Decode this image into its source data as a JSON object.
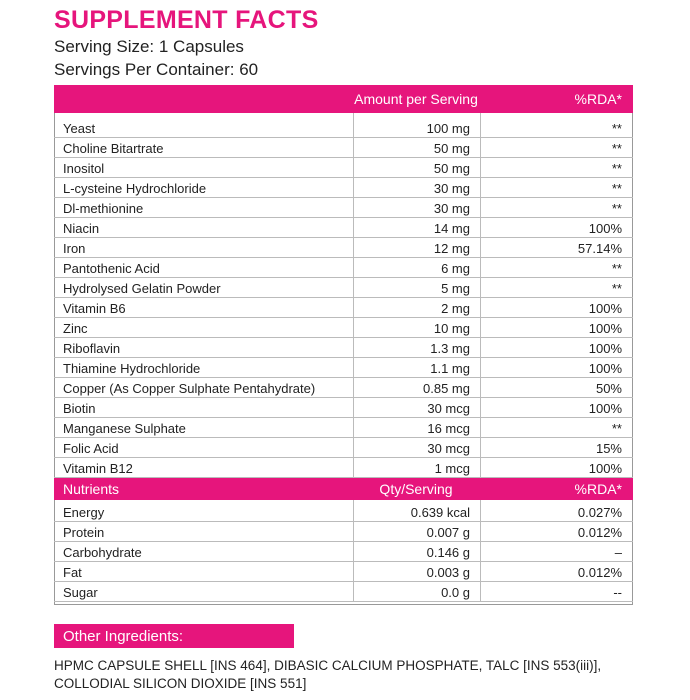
{
  "header": {
    "title": "SUPPLEMENT FACTS",
    "serving_size": "Serving Size:  1 Capsules",
    "servings_per_container": "Servings Per Container:  60"
  },
  "table": {
    "columns": [
      "Amount per Serving",
      "%RDA*"
    ],
    "rows": [
      [
        "Yeast",
        "100 mg",
        "**"
      ],
      [
        "Choline Bitartrate",
        "50 mg",
        "**"
      ],
      [
        "Inositol",
        "50 mg",
        "**"
      ],
      [
        "L-cysteine Hydrochloride",
        "30 mg",
        "**"
      ],
      [
        "Dl-methionine",
        "30 mg",
        "**"
      ],
      [
        "Niacin",
        "14 mg",
        "100%"
      ],
      [
        "Iron",
        "12 mg",
        "57.14%"
      ],
      [
        "Pantothenic Acid",
        "6 mg",
        "**"
      ],
      [
        "Hydrolysed Gelatin Powder",
        "5 mg",
        "**"
      ],
      [
        "Vitamin B6",
        "2 mg",
        "100%"
      ],
      [
        "Zinc",
        "10 mg",
        "100%"
      ],
      [
        "Riboflavin",
        "1.3 mg",
        "100%"
      ],
      [
        "Thiamine Hydrochloride",
        "1.1 mg",
        "100%"
      ],
      [
        "Copper (As Copper Sulphate Pentahydrate)",
        "0.85 mg",
        "50%"
      ],
      [
        "Biotin",
        "30 mcg",
        "100%"
      ],
      [
        "Manganese Sulphate",
        "16 mcg",
        "**"
      ],
      [
        "Folic Acid",
        "30 mcg",
        "15%"
      ],
      [
        "Vitamin B12",
        "1 mcg",
        "100%"
      ]
    ]
  },
  "nutrients": {
    "columns": [
      "Nutrients",
      "Qty/Serving",
      "%RDA*"
    ],
    "rows": [
      [
        "Energy",
        "0.639 kcal",
        "0.027%"
      ],
      [
        "Protein",
        "0.007 g",
        "0.012%"
      ],
      [
        "Carbohydrate",
        "0.146 g",
        "–"
      ],
      [
        "Fat",
        "0.003 g",
        "0.012%"
      ],
      [
        "Sugar",
        "0.0 g",
        "--"
      ]
    ]
  },
  "other_ingredients": {
    "title": "Other Ingredients:",
    "lines": [
      "HPMC CAPSULE SHELL [INS 464], DIBASIC CALCIUM PHOSPHATE, TALC [INS 553(iii)],",
      "COLLODIAL SILICON DIOXIDE [INS 551]"
    ]
  }
}
